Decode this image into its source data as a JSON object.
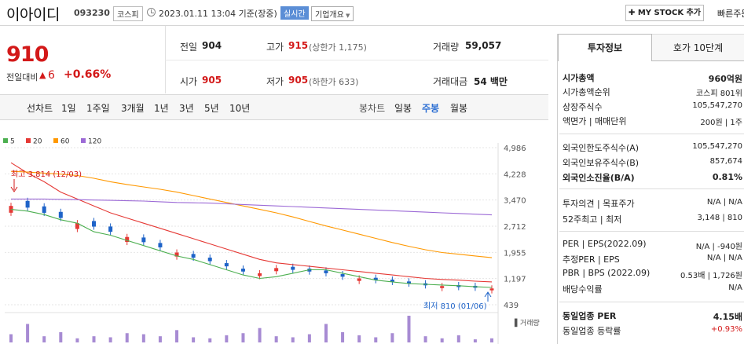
{
  "header": {
    "company": "이아이디",
    "code": "093230",
    "market": "코스피",
    "datetime": "2023.01.11 13:04 기준(장중)",
    "realtime": "실시간",
    "overview": "기업개요",
    "mystock": "MY STOCK 추가",
    "quick": "빠른주문"
  },
  "price": {
    "current": "910",
    "change_label": "전일대비",
    "change_arrow": "▲",
    "change": "6",
    "change_pct": "+0.66%"
  },
  "stats": {
    "prev_label": "전일",
    "prev": "904",
    "high_label": "고가",
    "high": "915",
    "upper_limit": "(상한가 1,175)",
    "volume_label": "거래량",
    "volume": "59,057",
    "open_label": "시가",
    "open": "905",
    "low_label": "저가",
    "low": "905",
    "lower_limit": "(하한가 633)",
    "amount_label": "거래대금",
    "amount": "54 백만"
  },
  "periods": {
    "line_label": "선차트",
    "line_items": [
      "1일",
      "1주일",
      "3개월",
      "1년",
      "3년",
      "5년",
      "10년"
    ],
    "candle_label": "봉차트",
    "candle_items": [
      "일봉",
      "주봉",
      "월봉"
    ],
    "selected": "주봉"
  },
  "chart_data": {
    "type": "line",
    "title": "",
    "legend": [
      "5",
      "20",
      "60",
      "120"
    ],
    "legend_colors": [
      "#4caf50",
      "#e53935",
      "#ff9800",
      "#9c6ad6"
    ],
    "y_ticks": [
      "4,986",
      "4,228",
      "3,470",
      "2,712",
      "1,955",
      "1,197",
      "439"
    ],
    "ylim": [
      439,
      4986
    ],
    "high_annotation": "최고 3,814 (12/03)",
    "low_annotation": "최저 810 (01/06)",
    "volume_label": "거래량",
    "series": [
      {
        "name": "5",
        "values": [
          3200,
          3150,
          3050,
          2900,
          2800,
          2550,
          2450,
          2300,
          2150,
          2000,
          1850,
          1750,
          1600,
          1450,
          1300,
          1200,
          1250,
          1350,
          1450,
          1450,
          1350,
          1250,
          1150,
          1100,
          1050,
          1030,
          1010,
          990,
          960,
          940
        ]
      },
      {
        "name": "20",
        "values": [
          4550,
          4250,
          4000,
          3700,
          3500,
          3300,
          3100,
          2950,
          2800,
          2650,
          2500,
          2350,
          2200,
          2050,
          1900,
          1750,
          1650,
          1600,
          1550,
          1500,
          1450,
          1400,
          1350,
          1300,
          1250,
          1200,
          1170,
          1150,
          1120,
          1100
        ]
      },
      {
        "name": "60",
        "values": [
          4300,
          4280,
          4250,
          4220,
          4180,
          4100,
          4000,
          3920,
          3850,
          3780,
          3700,
          3600,
          3500,
          3400,
          3300,
          3200,
          3100,
          2980,
          2850,
          2720,
          2600,
          2480,
          2360,
          2240,
          2130,
          2030,
          1950,
          1900,
          1850,
          1800
        ]
      },
      {
        "name": "120",
        "values": [
          3500,
          3500,
          3500,
          3490,
          3480,
          3470,
          3460,
          3450,
          3440,
          3420,
          3400,
          3390,
          3380,
          3360,
          3340,
          3320,
          3300,
          3280,
          3260,
          3240,
          3220,
          3200,
          3180,
          3160,
          3140,
          3120,
          3100,
          3080,
          3060,
          3040
        ]
      }
    ],
    "candles": {
      "close": [
        3300,
        3250,
        3100,
        2950,
        2800,
        2700,
        2550,
        2400,
        2250,
        2100,
        1950,
        1800,
        1700,
        1550,
        1400,
        1350,
        1500,
        1450,
        1400,
        1350,
        1250,
        1200,
        1150,
        1100,
        1050,
        1000,
        980,
        950,
        930,
        910
      ],
      "up": [
        true,
        false,
        false,
        false,
        true,
        false,
        false,
        true,
        false,
        false,
        true,
        false,
        false,
        false,
        false,
        true,
        true,
        false,
        false,
        false,
        false,
        true,
        false,
        false,
        false,
        false,
        true,
        false,
        false,
        true
      ]
    },
    "volume": [
      8,
      18,
      6,
      10,
      4,
      6,
      5,
      9,
      8,
      6,
      12,
      5,
      4,
      7,
      9,
      14,
      6,
      5,
      8,
      18,
      10,
      7,
      5,
      9,
      26,
      6,
      4,
      7,
      3,
      4
    ]
  },
  "invest": {
    "tab1": "투자정보",
    "tab2": "호가 10단계",
    "rows": [
      {
        "label": "시가총액",
        "value": "960억원",
        "bold": true
      },
      {
        "label": "시가총액순위",
        "value": "코스피 801위"
      },
      {
        "label": "상장주식수",
        "value": "105,547,270"
      },
      {
        "label": "액면가 | 매매단위",
        "value": "200원 | 1주"
      },
      {
        "label": "외국인한도주식수(A)",
        "value": "105,547,270"
      },
      {
        "label": "외국인보유주식수(B)",
        "value": "857,674"
      },
      {
        "label": "외국인소진율(B/A)",
        "value": "0.81%",
        "bold": true
      },
      {
        "label": "투자의견 | 목표주가",
        "value": "N/A | N/A"
      },
      {
        "label": "52주최고 | 최저",
        "value": "3,148 | 810"
      },
      {
        "label": "PER | EPS(2022.09)",
        "value": "N/A | -940원"
      },
      {
        "label": "추정PER | EPS",
        "value": "N/A | N/A"
      },
      {
        "label": "PBR | BPS (2022.09)",
        "value": "0.53배 | 1,726원"
      },
      {
        "label": "배당수익률",
        "value": "N/A"
      },
      {
        "label": "동일업종 PER",
        "value": "4.15배",
        "bold": true
      },
      {
        "label": "동일업종 등락률",
        "value": "+0.93%",
        "red": true
      }
    ]
  }
}
